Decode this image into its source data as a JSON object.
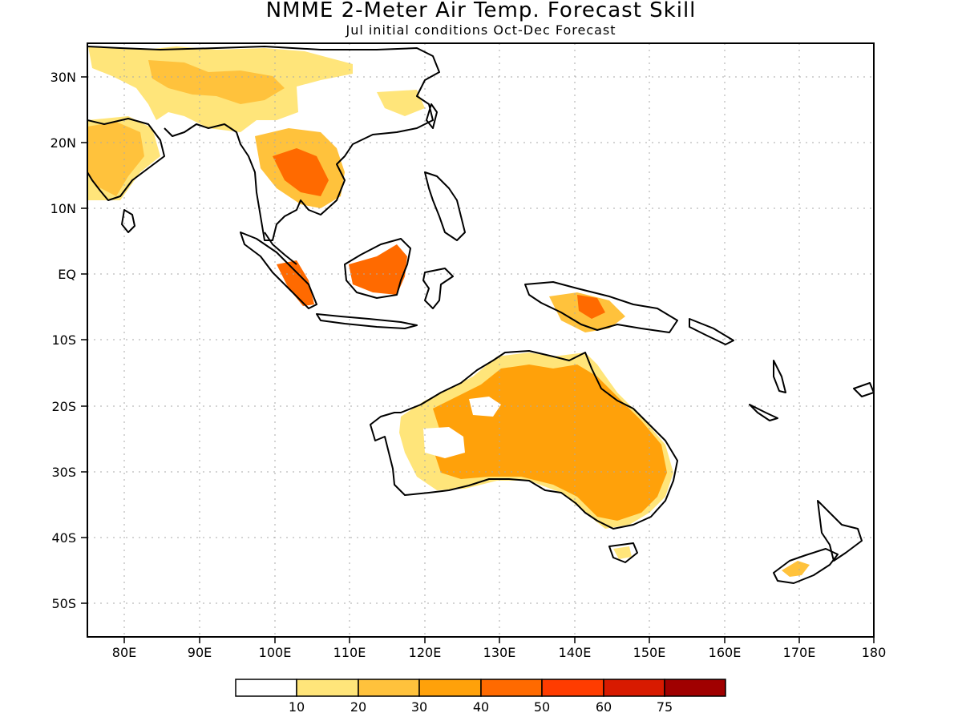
{
  "map": {
    "title": "NMME 2-Meter Air Temp. Forecast Skill",
    "subtitle": "Jul initial conditions  Oct-Dec Forecast",
    "lat_labels": [
      "30N",
      "20N",
      "10N",
      "EQ",
      "10S",
      "20S",
      "30S",
      "40S",
      "50S"
    ],
    "lon_labels": [
      "80E",
      "90E",
      "100E",
      "110E",
      "120E",
      "130E",
      "140E",
      "150E",
      "160E",
      "170E",
      "180"
    ],
    "lat_range": [
      -55,
      35
    ],
    "lon_range": [
      75,
      180
    ]
  },
  "colorbar": {
    "levels": [
      "10",
      "20",
      "30",
      "40",
      "50",
      "60",
      "75"
    ],
    "colors": [
      "#ffffff",
      "#ffe57a",
      "#ffc23c",
      "#ffa10a",
      "#ff6a00",
      "#ff3c00",
      "#d81a00",
      "#a00000"
    ]
  }
}
